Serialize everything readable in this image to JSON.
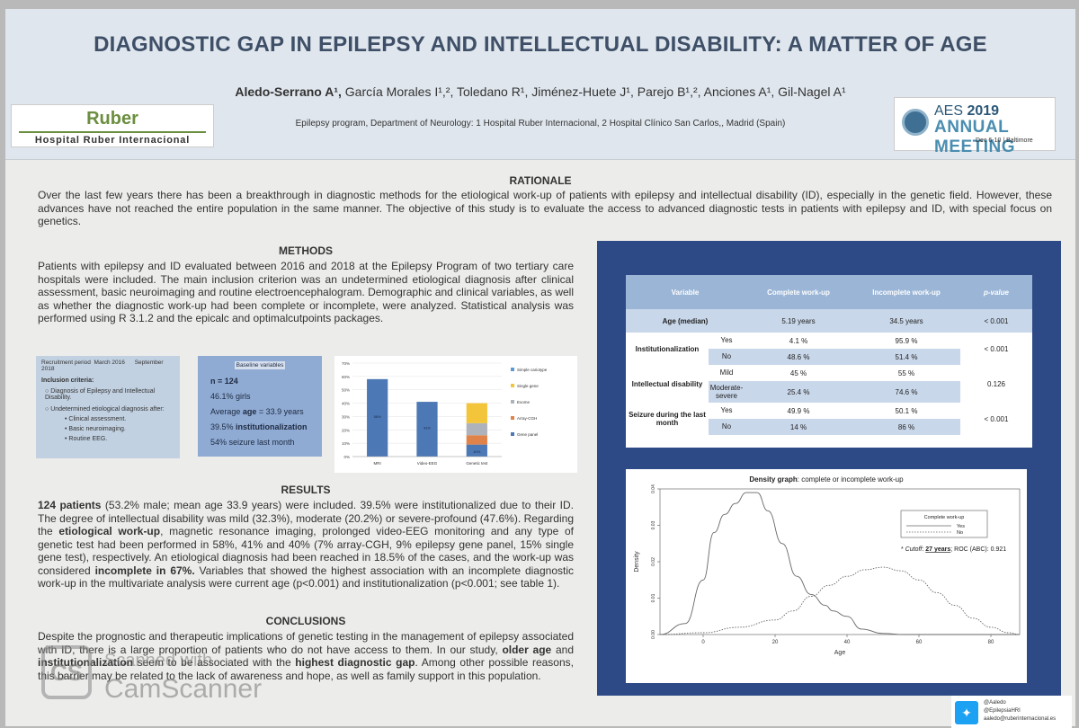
{
  "header": {
    "title": "DIAGNOSTIC GAP IN EPILEPSY AND INTELLECTUAL DISABILITY: A MATTER OF AGE",
    "authors_first": "Aledo-Serrano A¹,",
    "authors_rest": " García Morales I¹,², Toledano R¹, Jiménez-Huete J¹, Parejo B¹,², Anciones A¹, Gil-Nagel A¹",
    "affiliation": "Epilepsy program, Department of Neurology: 1 Hospital Ruber Internacional, 2 Hospital Clínico San Carlos,, Madrid (Spain)",
    "logo_left_top": "Ruber",
    "logo_left_bottom": "Hospital Ruber Internacional",
    "logo_right_aes": "AES",
    "logo_right_year": "2019",
    "logo_right_meeting": "ANNUAL MEETING",
    "logo_right_date": "Dec 6-10 | Baltimore"
  },
  "rationale": {
    "heading": "RATIONALE",
    "text": "Over the last few years there has been a breakthrough in diagnostic methods for the etiological work-up of patients with epilepsy and intellectual disability (ID), especially in the genetic field. However, these advances have not reached the entire population in the same manner. The objective of this study is to evaluate the access to advanced diagnostic tests in patients with epilepsy and ID, with special focus on genetics."
  },
  "methods": {
    "heading": "METHODS",
    "text": "Patients with epilepsy and ID evaluated between 2016 and 2018 at the Epilepsy Program of two tertiary care hospitals were included. The main inclusion criterion was an undetermined etiological diagnosis after clinical assessment, basic neuroimaging and routine electroencephalogram. Demographic and clinical variables, as well as whether the diagnostic work-up had been complete or incomplete, were analyzed. Statistical analysis was performed using R 3.1.2 and the epicalc and optimalcutpoints packages."
  },
  "inclusion_box": {
    "period_label": "Recruitment period",
    "period_start": "March 2016",
    "period_end": "September 2018",
    "criteria_label": "Inclusion criteria:",
    "item1": "Diagnosis of Epilepsy and Intellectual Disability.",
    "item2": "Undetermined etiological diagnosis after:",
    "sub1": "Clinical assessment.",
    "sub2": "Basic neuroimaging.",
    "sub3": "Routine EEG."
  },
  "baseline_box": {
    "title": "Baseline variables",
    "n": "n = 124",
    "girls": "46.1% girls",
    "age_pre": "Average ",
    "age_bold": "age",
    "age_post": " = 33.9 years",
    "inst_pre": "39.5% ",
    "inst_bold": "institutionalization",
    "seizure": "54% seizure last month"
  },
  "bar_chart": {
    "chart_data": {
      "type": "bar",
      "categories": [
        "MRI",
        "Video-EEG",
        "Genetic test"
      ],
      "values": [
        58,
        41,
        40
      ],
      "stack_genetic": [
        {
          "name": "Gene panel",
          "value": 9,
          "color": "#4c78b5"
        },
        {
          "name": "Array-CGH",
          "value": 7,
          "color": "#e0834a"
        },
        {
          "name": "Exome",
          "value": 9,
          "color": "#aeb3bb"
        },
        {
          "name": "Single gene",
          "value": 15,
          "color": "#f3c53a"
        },
        {
          "name": "Simple cariotype",
          "value": 0,
          "color": "#5b9bd5"
        }
      ],
      "ylim": [
        0,
        70
      ],
      "yticks": [
        "0%",
        "10%",
        "20%",
        "30%",
        "40%",
        "50%",
        "60%",
        "70%"
      ],
      "data_labels": [
        "58%",
        "41%",
        "40%"
      ],
      "legend": [
        "Simple cariotype",
        "Single gene",
        "Exome",
        "Array-CGH",
        "Gene panel"
      ],
      "legend_position": "right",
      "bar_color": "#4c78b5"
    }
  },
  "results": {
    "heading": "RESULTS",
    "p1_bold": "124 patients",
    "p1_a": " (53.2% male; mean age 33.9 years) were included. 39.5% were institutionalized due to their ID. The degree of intellectual disability was mild (32.3%), moderate (20.2%) or severe-profound (47.6%). Regarding the ",
    "p1_bold2": "etiological work-up",
    "p1_b": ", magnetic resonance imaging, prolonged video-EEG monitoring and any type of genetic test had been performed in 58%, 41% and 40% (7% array-CGH, 9% epilepsy gene panel, 15% single gene test), respectively. An etiological diagnosis had been reached in 18.5% of the cases, and the work-up was considered ",
    "p1_bold3": "incomplete in 67%.",
    "p1_c": " Variables that showed the highest association with an incomplete diagnostic work-up in the multivariate analysis were current age (p<0.001) and institutionalization (p<0.001; see table 1)."
  },
  "conclusions": {
    "heading": "CONCLUSIONS",
    "c_a": "Despite the prognostic and therapeutic implications of genetic testing in the management of epilepsy associated with ID, there is a large proportion of patients who do not have access to them. In our study, ",
    "c_bold1": "older age",
    "c_b": " and ",
    "c_bold2": "institutionalization",
    "c_c": " seem to be associated with the ",
    "c_bold3": "highest diagnostic gap",
    "c_d": ". Among other possible reasons, this barrier may be related to the lack of awareness and hope, as well as family support in this population."
  },
  "table": {
    "headers": [
      "Variable",
      "Complete work-up",
      "Incomplete work-up",
      "p-value"
    ],
    "age_label": "Age (median)",
    "age_complete": "5.19 years",
    "age_incomplete": "34.5 years",
    "age_p": "< 0.001",
    "inst_label": "Institutionalization",
    "inst_yes": "Yes",
    "inst_yes_c": "4.1 %",
    "inst_yes_i": "95.9 %",
    "inst_no": "No",
    "inst_no_c": "48.6 %",
    "inst_no_i": "51.4 %",
    "inst_p": "< 0.001",
    "id_label": "Intellectual disability",
    "id_mild": "Mild",
    "id_mild_c": "45 %",
    "id_mild_i": "55 %",
    "id_mod": "Moderate-severe",
    "id_mod_c": "25.4 %",
    "id_mod_i": "74.6 %",
    "id_p": "0.126",
    "sz_label": "Seizure during the last month",
    "sz_yes": "Yes",
    "sz_yes_c": "49.9 %",
    "sz_yes_i": "50.1 %",
    "sz_no": "No",
    "sz_no_c": "14 %",
    "sz_no_i": "86 %",
    "sz_p": "< 0.001"
  },
  "density": {
    "title_bold": "Density graph",
    "title_rest": ": complete or incomplete work-up",
    "legend_title": "Complete work-up",
    "legend_yes": "Yes",
    "legend_no": "No",
    "cutoff_pre": "* ",
    "cutoff_em": "Cutoff",
    "cutoff_mid": ": ",
    "cutoff_value": "27 years",
    "cutoff_post": "; ROC (ABC): 0.921",
    "chart_data": {
      "type": "line",
      "xlabel": "Age",
      "ylabel": "Density",
      "xlim": [
        -12,
        88
      ],
      "ylim": [
        0,
        0.04
      ],
      "xticks": [
        0,
        20,
        40,
        60,
        80
      ],
      "yticks": [
        0.0,
        0.01,
        0.02,
        0.03,
        0.04
      ],
      "ytick_labels": [
        "0.00",
        "0.01",
        "0.02",
        "0.03",
        "0.04"
      ],
      "legend_position": "top-right",
      "series": [
        {
          "name": "Yes",
          "style": "solid",
          "x": [
            -12,
            -5,
            0,
            3,
            6,
            9,
            12,
            15,
            18,
            22,
            26,
            30,
            34,
            36,
            40,
            44,
            50,
            56,
            62,
            70,
            80,
            88
          ],
          "y": [
            0.0,
            0.003,
            0.015,
            0.028,
            0.033,
            0.036,
            0.039,
            0.039,
            0.034,
            0.025,
            0.016,
            0.011,
            0.008,
            0.0065,
            0.005,
            0.0015,
            0.0003,
            0.0,
            0.0,
            0.0,
            0.0,
            0.0
          ]
        },
        {
          "name": "No",
          "style": "dashed",
          "x": [
            -12,
            0,
            10,
            20,
            25,
            30,
            35,
            40,
            45,
            50,
            55,
            60,
            65,
            70,
            75,
            80,
            85,
            88
          ],
          "y": [
            0.0,
            0.0005,
            0.002,
            0.004,
            0.0065,
            0.0105,
            0.0135,
            0.016,
            0.0178,
            0.0185,
            0.0175,
            0.015,
            0.0115,
            0.008,
            0.0045,
            0.002,
            0.0005,
            0.0
          ]
        }
      ]
    }
  },
  "twitter": {
    "icon": "twitter-icon",
    "handle1": "@Aaledo",
    "handle2": "@EpilepsiaHRI",
    "email": "aaledo@ruberinternacional.es"
  },
  "watermark": {
    "icon_text": "CS",
    "line1": "Scanned with",
    "line2": "CamScanner"
  }
}
